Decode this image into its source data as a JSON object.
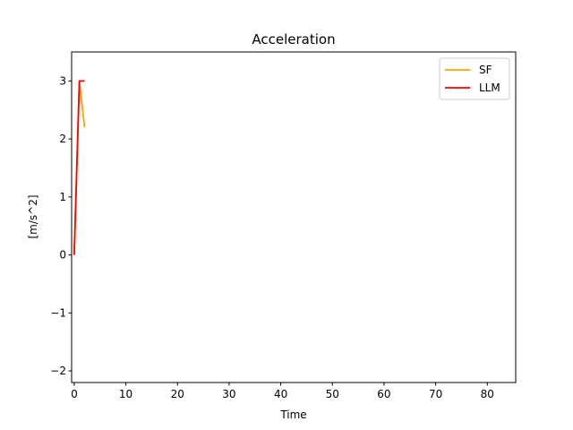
{
  "chart_data": {
    "type": "line",
    "title": "Acceleration",
    "xlabel": "Time",
    "ylabel": "[m/s^2]",
    "xlim": [
      -0.5,
      85.5
    ],
    "ylim": [
      -2.2,
      3.5
    ],
    "xticks": [
      0,
      10,
      20,
      30,
      40,
      50,
      60,
      70,
      80
    ],
    "yticks": [
      -2,
      -1,
      0,
      1,
      2,
      3
    ],
    "grid": false,
    "legend_position": "top-right",
    "series": [
      {
        "name": "SF",
        "color": "#ffa500",
        "x": [
          0,
          1,
          2
        ],
        "y": [
          0,
          3,
          2.2
        ]
      },
      {
        "name": "LLM",
        "color": "#ff0000",
        "x": [
          0,
          1,
          2
        ],
        "y": [
          0,
          3,
          3
        ]
      }
    ]
  }
}
